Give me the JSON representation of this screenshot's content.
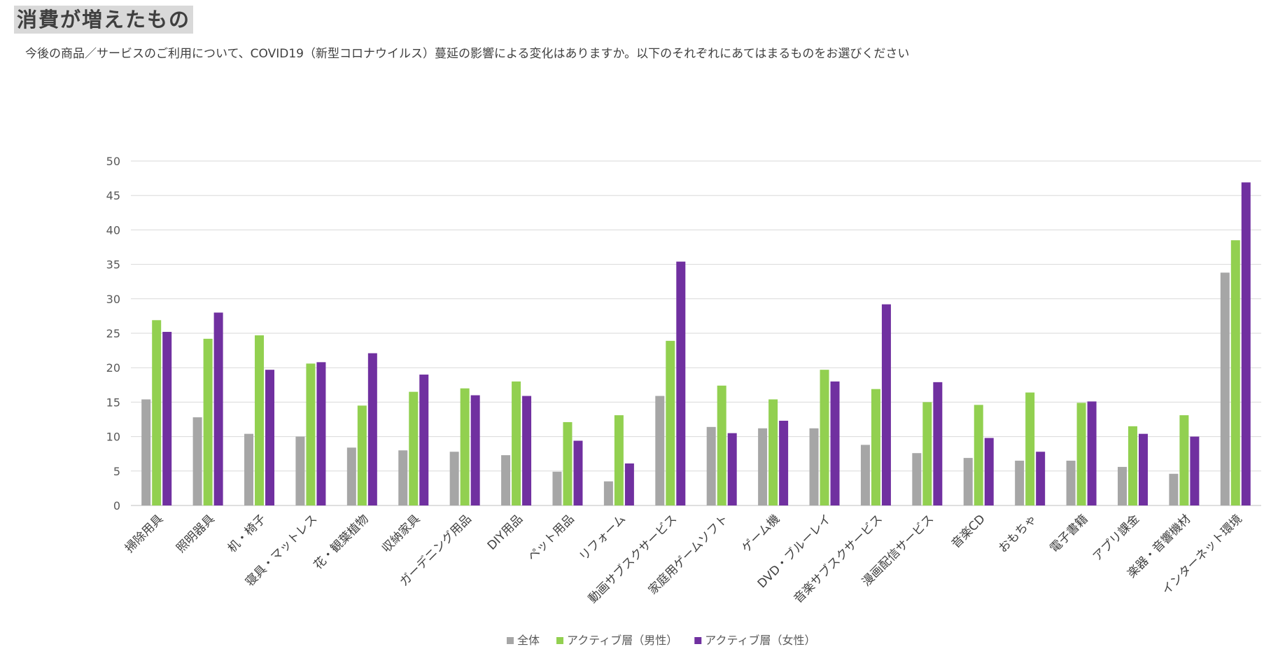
{
  "header": {
    "title": "消費が増えたもの",
    "subtitle": "今後の商品／サービスのご利用について、COVID19（新型コロナウイルス）蔓延の影響による変化はありますか。以下のそれぞれにあてはまるものをお選びください"
  },
  "chart_data": {
    "type": "bar",
    "title": "消費が増えたもの",
    "xlabel": "",
    "ylabel": "",
    "ylim": [
      0,
      50
    ],
    "yticks": [
      0,
      5,
      10,
      15,
      20,
      25,
      30,
      35,
      40,
      45,
      50
    ],
    "grid": true,
    "legend_position": "bottom",
    "categories": [
      "掃除用具",
      "照明器具",
      "机・椅子",
      "寝具・マットレス",
      "花・観葉植物",
      "収納家具",
      "ガーデニング用品",
      "DIY用品",
      "ペット用品",
      "リフォーム",
      "動画サブスクサービス",
      "家庭用ゲームソフト",
      "ゲーム機",
      "DVD・ブルーレイ",
      "音楽サブスクサービス",
      "漫画配信サービス",
      "音楽CD",
      "おもちゃ",
      "電子書籍",
      "アプリ課金",
      "楽器・音響機材",
      "インターネット環境"
    ],
    "series": [
      {
        "name": "全体",
        "color": "#a6a6a6",
        "values": [
          15.4,
          12.8,
          10.4,
          10.0,
          8.4,
          8.0,
          7.8,
          7.3,
          4.9,
          3.5,
          15.9,
          11.4,
          11.2,
          11.2,
          8.8,
          7.6,
          6.9,
          6.5,
          6.5,
          5.6,
          4.6,
          33.8
        ]
      },
      {
        "name": "アクティブ層（男性）",
        "color": "#92d050",
        "values": [
          26.9,
          24.2,
          24.7,
          20.6,
          14.5,
          16.5,
          17.0,
          18.0,
          12.1,
          13.1,
          23.9,
          17.4,
          15.4,
          19.7,
          16.9,
          15.0,
          14.6,
          16.4,
          14.9,
          11.5,
          13.1,
          38.5
        ]
      },
      {
        "name": "アクティブ層（女性）",
        "color": "#7030a0",
        "values": [
          25.2,
          28.0,
          19.7,
          20.8,
          22.1,
          19.0,
          16.0,
          15.9,
          9.4,
          6.1,
          35.4,
          10.5,
          12.3,
          18.0,
          29.2,
          17.9,
          9.8,
          7.8,
          15.1,
          10.4,
          10.0,
          46.9
        ]
      }
    ]
  }
}
